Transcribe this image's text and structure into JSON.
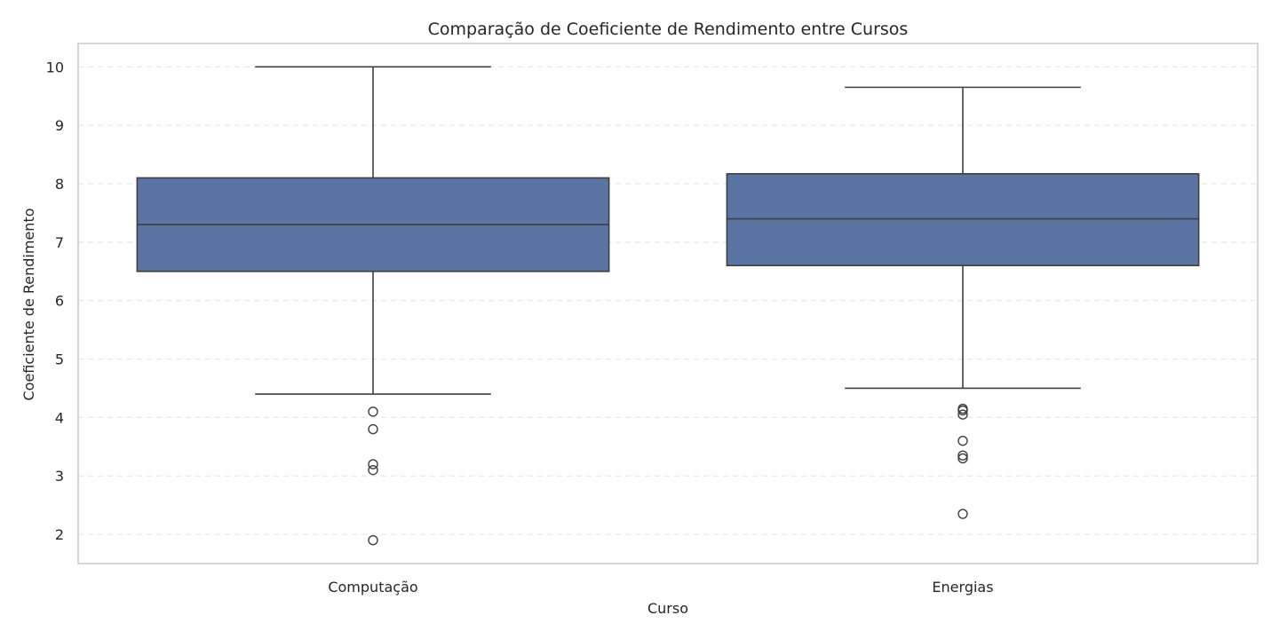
{
  "chart_data": {
    "type": "box",
    "title": "Comparação de Coeficiente de Rendimento entre Cursos",
    "xlabel": "Curso",
    "ylabel": "Coeficiente de Rendimento",
    "ylim": [
      1.5,
      10.4
    ],
    "yticks": [
      2,
      3,
      4,
      5,
      6,
      7,
      8,
      9,
      10
    ],
    "grid": "horizontal-dashed",
    "box_color": "#5875a4",
    "line_color": "#3f3f3f",
    "categories": [
      "Computação",
      "Energias"
    ],
    "boxes": [
      {
        "category": "Computação",
        "whisker_low": 4.4,
        "q1": 6.5,
        "median": 7.3,
        "q3": 8.1,
        "whisker_high": 10.0,
        "outliers": [
          4.1,
          3.8,
          3.2,
          3.1,
          1.9
        ]
      },
      {
        "category": "Energias",
        "whisker_low": 4.5,
        "q1": 6.6,
        "median": 7.4,
        "q3": 8.17,
        "whisker_high": 9.65,
        "outliers": [
          4.15,
          4.12,
          4.05,
          3.6,
          3.35,
          3.3,
          2.35
        ]
      }
    ]
  }
}
